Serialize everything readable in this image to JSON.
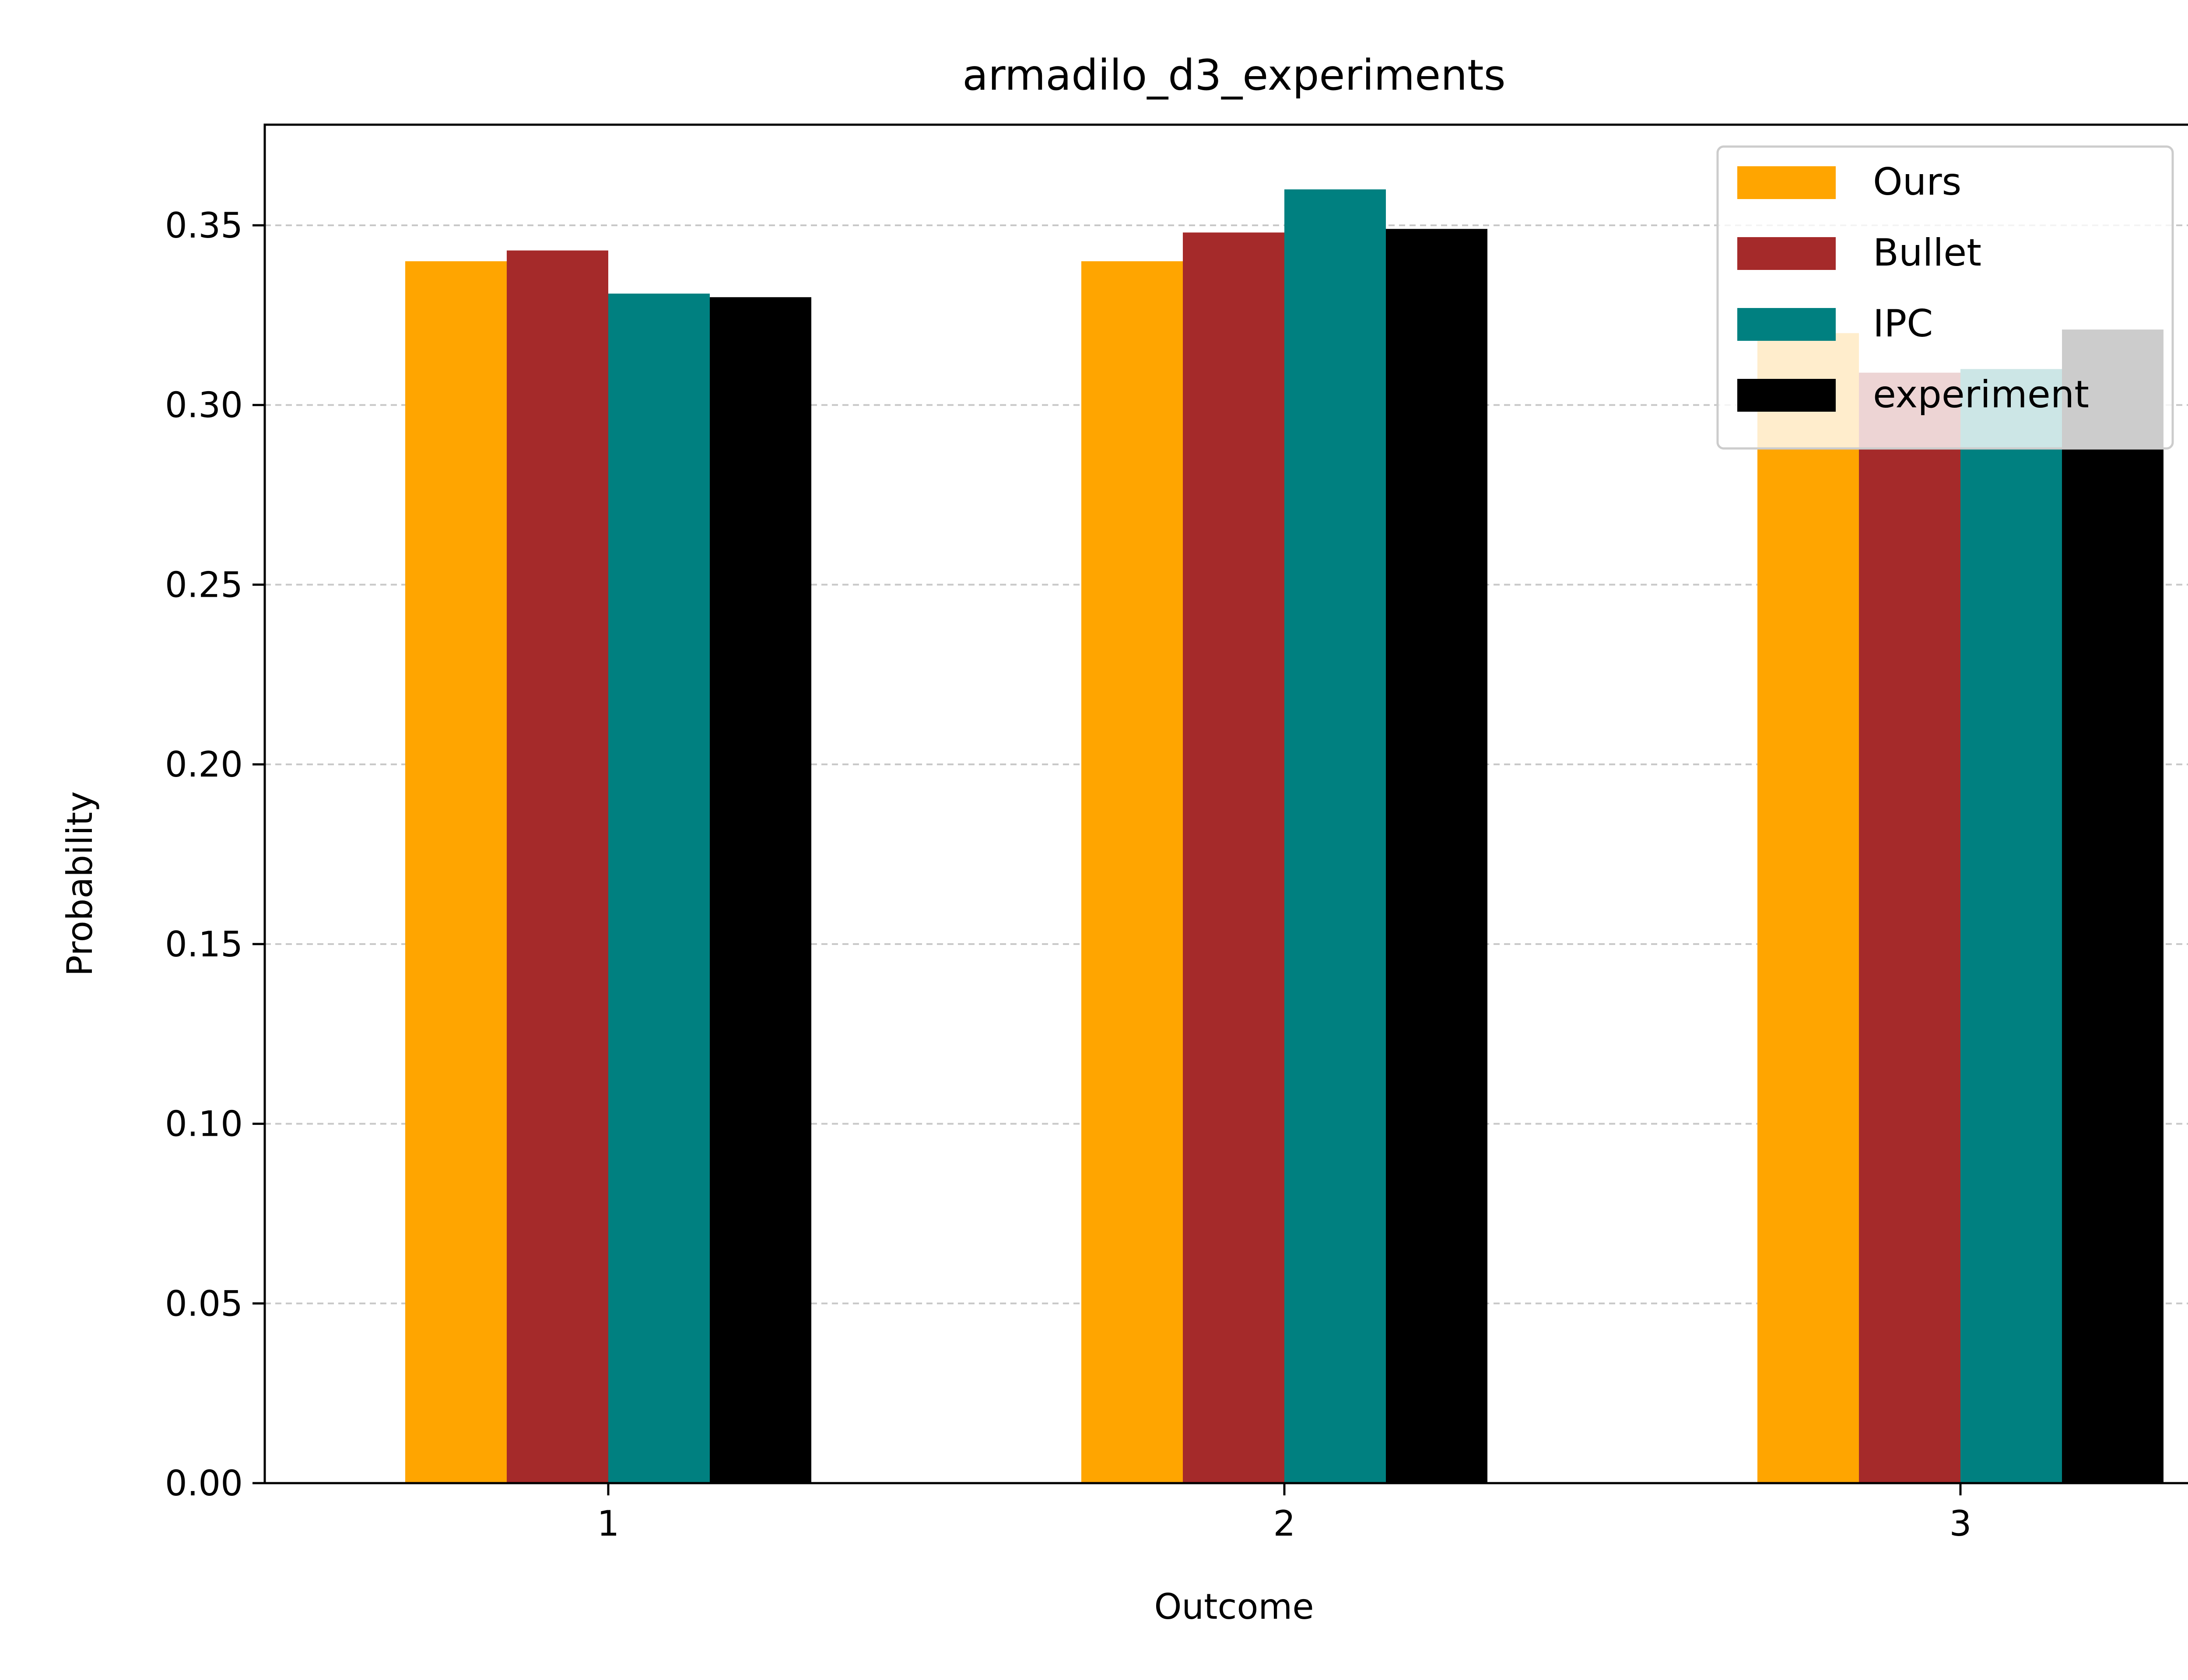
{
  "chart_data": {
    "type": "bar",
    "title": "armadilo_d3_experiments",
    "xlabel": "Outcome",
    "ylabel": "Probability",
    "categories": [
      "1",
      "2",
      "3"
    ],
    "ylim": [
      0,
      0.378
    ],
    "yticks": [
      "0.00",
      "0.05",
      "0.10",
      "0.15",
      "0.20",
      "0.25",
      "0.30",
      "0.35"
    ],
    "grid": "y-dashed",
    "legend_position": "top-right",
    "series": [
      {
        "name": "Ours",
        "color": "#ffa500",
        "values": [
          0.34,
          0.34,
          0.32
        ]
      },
      {
        "name": "Bullet",
        "color": "#a52a2a",
        "values": [
          0.343,
          0.348,
          0.309
        ]
      },
      {
        "name": "IPC",
        "color": "#008080",
        "values": [
          0.331,
          0.36,
          0.31
        ]
      },
      {
        "name": "experiment",
        "color": "#000000",
        "values": [
          0.33,
          0.349,
          0.321
        ]
      }
    ]
  }
}
